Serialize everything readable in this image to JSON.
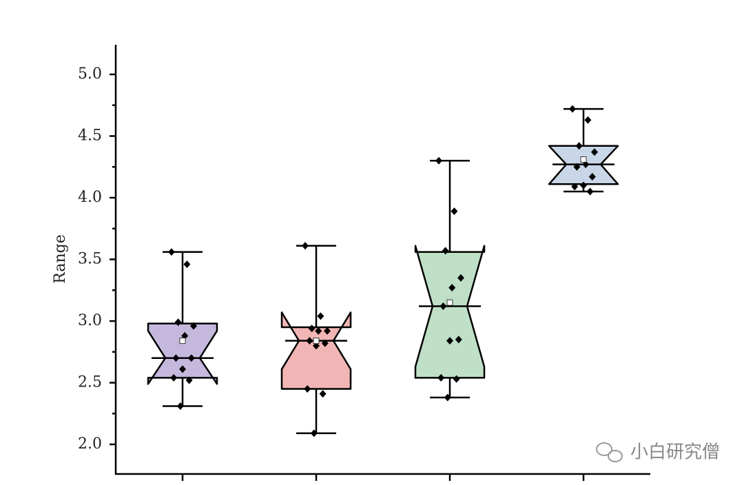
{
  "chart_data": {
    "type": "box",
    "y_label": "Range",
    "watermark": "小白研究僧",
    "categories": [
      null,
      null,
      null,
      null
    ],
    "xlim": [
      0.5,
      4.5
    ],
    "ylim": [
      1.76,
      5.24
    ],
    "yticks": [
      {
        "value": 2,
        "label": "2.0"
      },
      2.5,
      {
        "value": 3,
        "label": "3.0"
      },
      3.5,
      {
        "value": 4,
        "label": "4.0"
      },
      4.5,
      {
        "value": 5,
        "label": "5.0"
      }
    ],
    "boxes": [
      {
        "color": "#c5b8dd",
        "whisker_low": 2.31,
        "q1": 2.54,
        "median": 2.7,
        "q3": 2.98,
        "whisker_high": 3.56,
        "mean": 2.84,
        "notch_low": 2.49,
        "notch_high": 2.92,
        "points": [
          3.56,
          3.46,
          2.99,
          2.96,
          2.88,
          2.7,
          2.7,
          2.61,
          2.54,
          2.52,
          2.31
        ]
      },
      {
        "color": "#f2b5b5",
        "whisker_low": 2.09,
        "q1": 2.45,
        "median": 2.84,
        "q3": 2.95,
        "whisker_high": 3.61,
        "mean": 2.84,
        "notch_low": 2.61,
        "notch_high": 3.07,
        "points": [
          3.61,
          3.04,
          2.94,
          2.92,
          2.92,
          2.84,
          2.82,
          2.8,
          2.45,
          2.41,
          2.09
        ]
      },
      {
        "color": "#bfe0c6",
        "whisker_low": 2.38,
        "q1": 2.54,
        "median": 3.12,
        "q3": 3.56,
        "whisker_high": 4.3,
        "mean": 3.15,
        "notch_low": 2.63,
        "notch_high": 3.61,
        "points": [
          4.3,
          3.89,
          3.57,
          3.35,
          3.27,
          3.12,
          2.85,
          2.84,
          2.54,
          2.53,
          2.38
        ]
      },
      {
        "color": "#c8d6e8",
        "whisker_low": 4.05,
        "q1": 4.11,
        "median": 4.27,
        "q3": 4.42,
        "whisker_high": 4.72,
        "mean": 4.31,
        "notch_low": 4.11,
        "notch_high": 4.42,
        "points": [
          4.72,
          4.63,
          4.42,
          4.37,
          4.27,
          4.25,
          4.17,
          4.1,
          4.09,
          4.05
        ]
      }
    ]
  }
}
